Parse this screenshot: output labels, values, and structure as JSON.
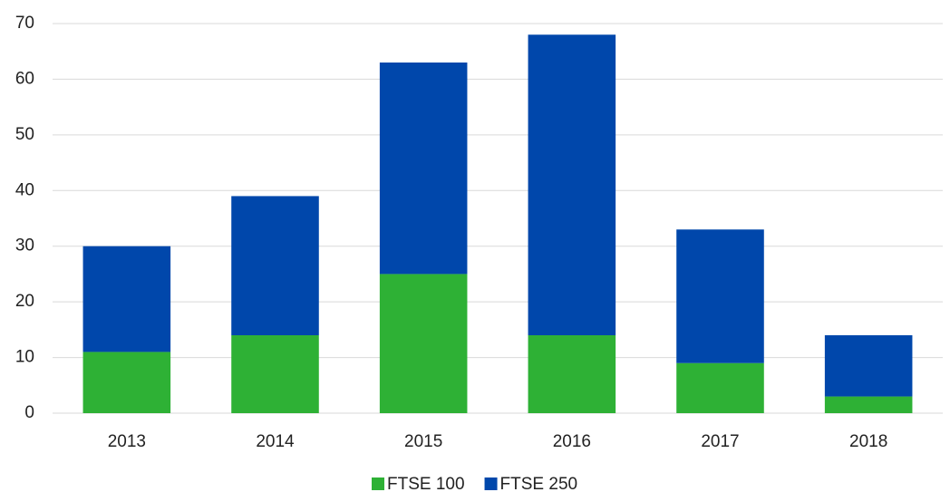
{
  "chart_data": {
    "type": "stacked_bar",
    "categories": [
      "2013",
      "2014",
      "2015",
      "2016",
      "2017",
      "2018"
    ],
    "series": [
      {
        "name": "FTSE 100",
        "color": "#2eb135",
        "values": [
          11,
          14,
          25,
          14,
          9,
          3
        ]
      },
      {
        "name": "FTSE 250",
        "color": "#0047ab",
        "values": [
          19,
          25,
          38,
          54,
          24,
          11
        ]
      }
    ],
    "ylim": [
      0,
      70
    ],
    "yticks": [
      0,
      10,
      20,
      30,
      40,
      50,
      60,
      70
    ],
    "grid": true,
    "legend": "bottom"
  }
}
